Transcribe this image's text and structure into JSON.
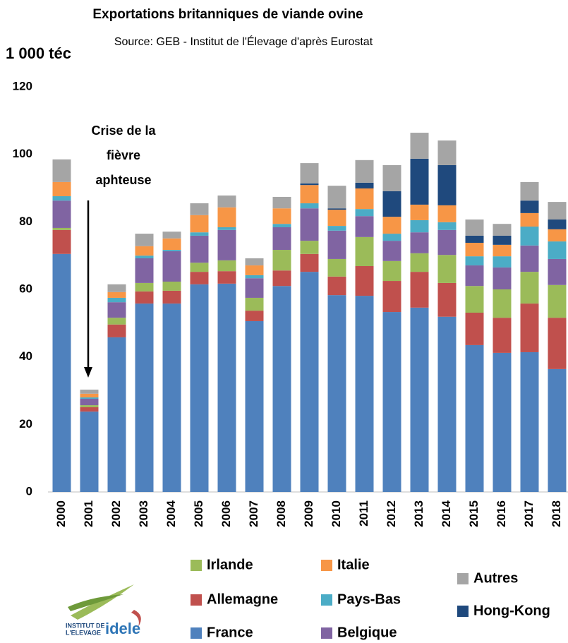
{
  "chart_data": {
    "type": "stacked_bar",
    "title": "Exportations britanniques de viande ovine",
    "subtitle": "Source: GEB - Institut de l'Élevage d'après Eurostat",
    "y_label": "1 000 téc",
    "annotation": [
      "Crise de la",
      "fièvre",
      "aphteuse"
    ],
    "categories": [
      "2000",
      "2001",
      "2002",
      "2003",
      "2004",
      "2005",
      "2006",
      "2007",
      "2008",
      "2009",
      "2010",
      "2011",
      "2012",
      "2013",
      "2014",
      "2015",
      "2016",
      "2017",
      "2018"
    ],
    "series": [
      {
        "name": "France",
        "color": "#4f81bd",
        "values": [
          70.5,
          23.8,
          45.8,
          55.8,
          55.8,
          61.5,
          61.7,
          50.6,
          61.0,
          65.2,
          58.3,
          58.1,
          53.3,
          54.6,
          51.9,
          43.5,
          41.2,
          41.4,
          36.4
        ]
      },
      {
        "name": "Allemagne",
        "color": "#c0504d",
        "values": [
          7.1,
          1.3,
          3.8,
          3.6,
          3.8,
          3.7,
          3.7,
          3.1,
          4.6,
          5.3,
          5.5,
          8.8,
          9.2,
          10.6,
          10.0,
          9.6,
          10.4,
          14.4,
          15.2
        ]
      },
      {
        "name": "Irlande",
        "color": "#9bbb59",
        "values": [
          0.6,
          0.6,
          2.0,
          2.5,
          2.7,
          2.7,
          3.2,
          3.8,
          6.1,
          3.9,
          5.2,
          8.6,
          5.9,
          5.5,
          8.3,
          7.9,
          8.4,
          9.4,
          9.7
        ]
      },
      {
        "name": "Belgique",
        "color": "#8064a2",
        "values": [
          8.1,
          1.9,
          4.6,
          7.3,
          9.0,
          8.0,
          9.0,
          5.8,
          6.7,
          9.6,
          8.4,
          6.2,
          6.0,
          6.2,
          7.4,
          6.1,
          6.5,
          7.8,
          7.7
        ]
      },
      {
        "name": "Pays-Bas",
        "color": "#4bacc6",
        "values": [
          1.3,
          0.4,
          1.3,
          0.8,
          0.4,
          1.0,
          0.8,
          0.9,
          1.0,
          1.5,
          1.4,
          2.1,
          2.1,
          3.6,
          2.3,
          2.7,
          3.3,
          5.6,
          5.2
        ]
      },
      {
        "name": "Italie",
        "color": "#f79646",
        "values": [
          4.2,
          1.1,
          1.7,
          2.8,
          3.4,
          5.1,
          5.9,
          2.9,
          4.6,
          5.4,
          4.8,
          6.1,
          5.0,
          4.6,
          5.0,
          4.0,
          3.4,
          4.0,
          3.6
        ]
      },
      {
        "name": "Hong-Kong",
        "color": "#1f497d",
        "values": [
          0,
          0,
          0,
          0,
          0,
          0,
          0,
          0,
          0,
          0.5,
          0.4,
          1.7,
          7.6,
          13.6,
          11.9,
          2.1,
          2.7,
          3.7,
          2.9
        ]
      },
      {
        "name": "Autres",
        "color": "#a5a5a5",
        "values": [
          6.7,
          1.2,
          2.3,
          3.7,
          2.0,
          3.5,
          3.5,
          2.1,
          3.4,
          6.0,
          6.7,
          6.7,
          7.7,
          7.7,
          7.3,
          4.8,
          3.5,
          5.5,
          5.2
        ]
      }
    ],
    "ylim": [
      0,
      120
    ],
    "yticks": [
      0,
      20,
      40,
      60,
      80,
      100,
      120
    ],
    "grid": false
  },
  "logo": {
    "line1": "INSTITUT DE",
    "line2": "L'ELEVAGE",
    "brand": "idele"
  }
}
